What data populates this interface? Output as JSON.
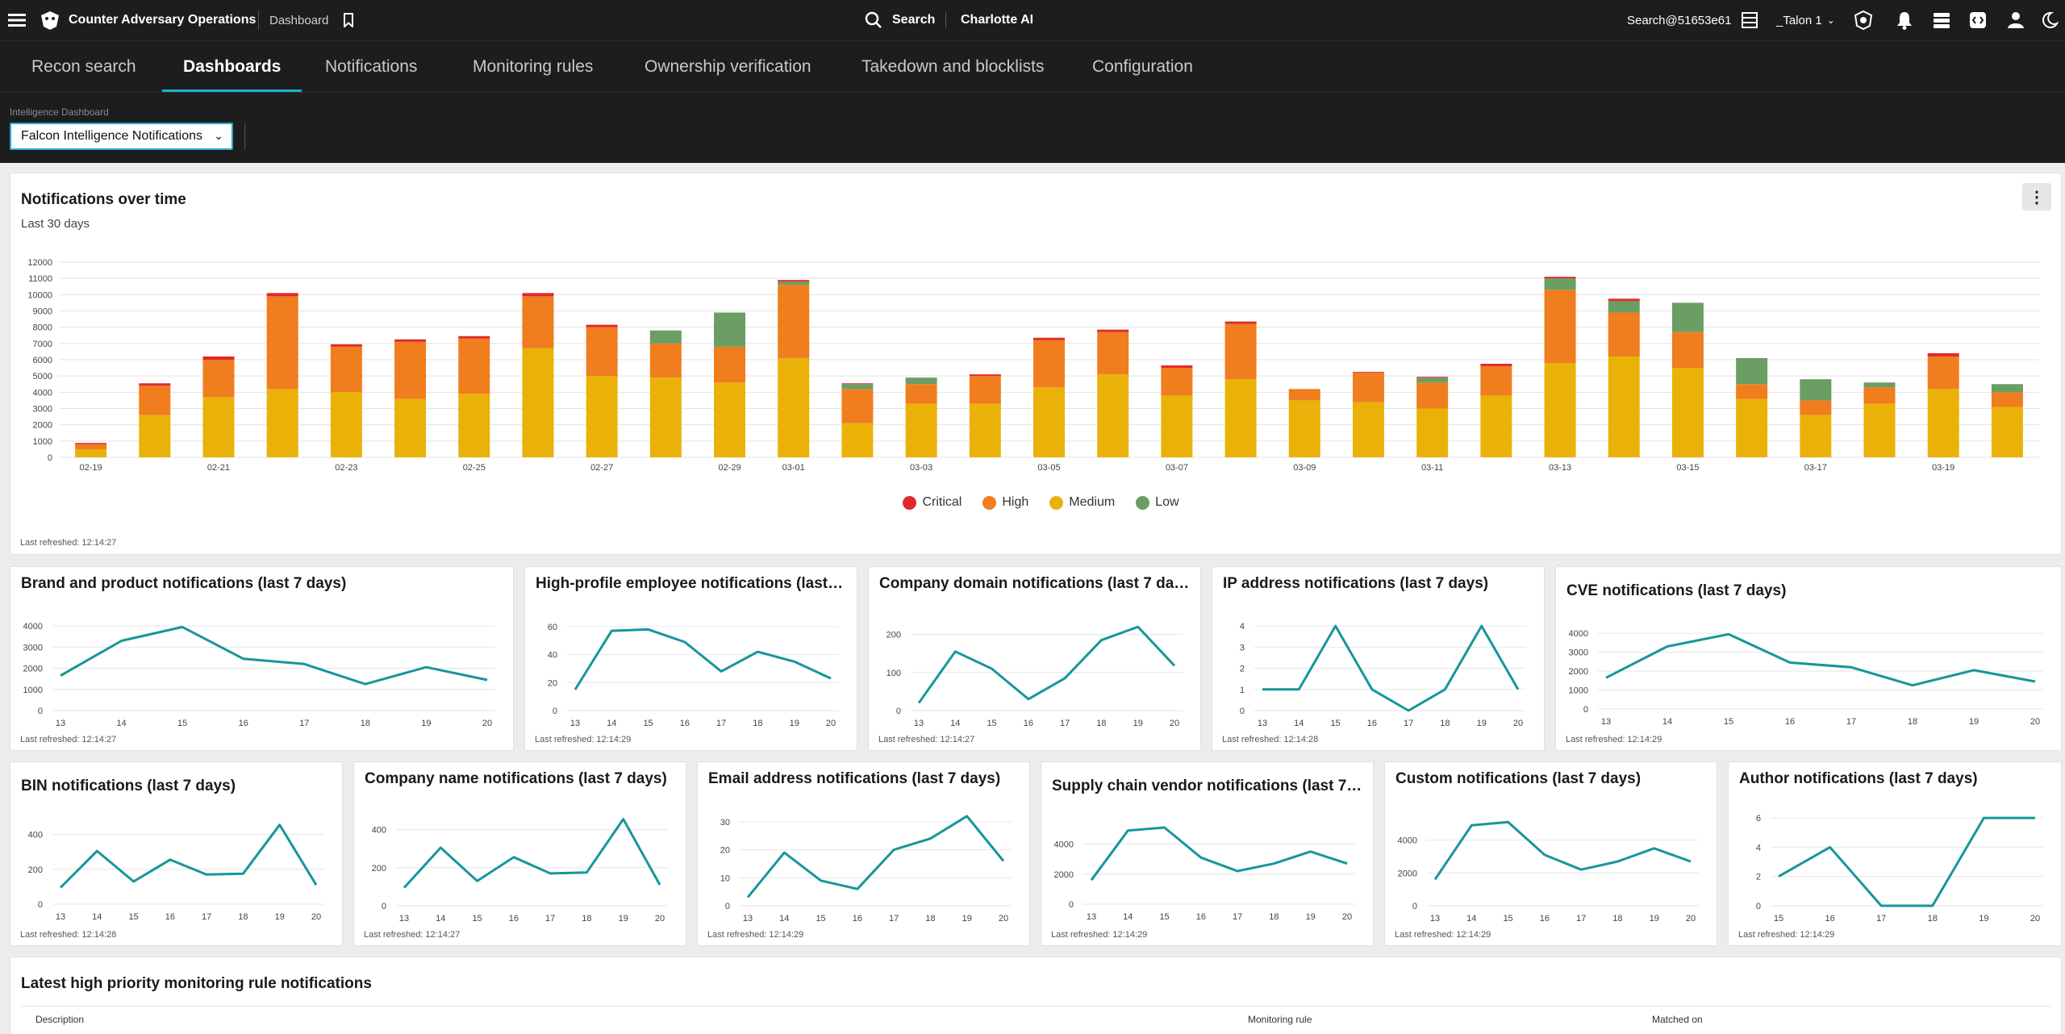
{
  "topbar": {
    "app_name": "Counter Adversary Operations",
    "section": "Dashboard",
    "search_label": "Search",
    "charlotte_label": "Charlotte AI",
    "search_id": "Search@51653e61",
    "tenant": "_Talon 1"
  },
  "tabs": [
    "Recon search",
    "Dashboards",
    "Notifications",
    "Monitoring rules",
    "Ownership verification",
    "Takedown and blocklists",
    "Configuration"
  ],
  "active_tab": "Dashboards",
  "filter": {
    "label": "Intelligence Dashboard",
    "value": "Falcon Intelligence Notifications"
  },
  "colors": {
    "critical": "#e02a2a",
    "high": "#f07d1e",
    "medium": "#eab209",
    "low": "#6a9e62",
    "line": "#17969a",
    "accent": "#1db0d4"
  },
  "main_chart": {
    "title": "Notifications over time",
    "subtitle": "Last 30 days",
    "refreshed": "Last refreshed: 12:14:27",
    "legend": [
      {
        "label": "Critical",
        "color": "#e02a2a"
      },
      {
        "label": "High",
        "color": "#f07d1e"
      },
      {
        "label": "Medium",
        "color": "#eab209"
      },
      {
        "label": "Low",
        "color": "#6a9e62"
      }
    ]
  },
  "small_charts": [
    {
      "title": "Brand and product notifications (last 7 days)",
      "refreshed": "Last refreshed: 12:14:27"
    },
    {
      "title": "High-profile employee notifications (last…",
      "refreshed": "Last refreshed: 12:14:29"
    },
    {
      "title": "Company domain notifications (last 7 da…",
      "refreshed": "Last refreshed: 12:14:27"
    },
    {
      "title": "IP address notifications (last 7 days)",
      "refreshed": "Last refreshed: 12:14:28"
    },
    {
      "title": "CVE notifications (last 7 days)",
      "refreshed": "Last refreshed: 12:14:29"
    },
    {
      "title": "BIN notifications (last 7 days)",
      "refreshed": "Last refreshed: 12:14:28"
    },
    {
      "title": "Company name notifications (last 7 days)",
      "refreshed": "Last refreshed: 12:14:27"
    },
    {
      "title": "Email address notifications (last 7 days)",
      "refreshed": "Last refreshed: 12:14:29"
    },
    {
      "title": "Supply chain vendor notifications (last 7…",
      "refreshed": "Last refreshed: 12:14:29"
    },
    {
      "title": "Custom notifications (last 7 days)",
      "refreshed": "Last refreshed: 12:14:29"
    },
    {
      "title": "Author notifications (last 7 days)",
      "refreshed": "Last refreshed: 12:14:29"
    }
  ],
  "table": {
    "title": "Latest high priority monitoring rule notifications",
    "columns": [
      "Description",
      "Monitoring rule",
      "Matched on"
    ]
  },
  "chart_data": [
    {
      "type": "bar",
      "stacked": true,
      "ylim": [
        0,
        12000
      ],
      "yticks": [
        0,
        1000,
        2000,
        3000,
        4000,
        5000,
        6000,
        7000,
        8000,
        9000,
        10000,
        11000,
        12000
      ],
      "categories": [
        "02-19",
        "02-20",
        "02-21",
        "02-22",
        "02-23",
        "02-24",
        "02-25",
        "02-26",
        "02-27",
        "02-28",
        "02-29",
        "03-01",
        "03-02",
        "03-03",
        "03-04",
        "03-05",
        "03-06",
        "03-07",
        "03-08",
        "03-09",
        "03-10",
        "03-11",
        "03-12",
        "03-13",
        "03-14",
        "03-15",
        "03-16",
        "03-17",
        "03-18",
        "03-19",
        "03-20"
      ],
      "xtick_labels": [
        "02-19",
        "",
        "02-21",
        "",
        "02-23",
        "",
        "02-25",
        "",
        "02-27",
        "",
        "02-29",
        "03-01",
        "",
        "03-03",
        "",
        "03-05",
        "",
        "03-07",
        "",
        "03-09",
        "",
        "03-11",
        "",
        "03-13",
        "",
        "03-15",
        "",
        "03-17",
        "",
        "03-19",
        ""
      ],
      "series": [
        {
          "name": "Medium",
          "values": [
            500,
            2600,
            3700,
            4200,
            4000,
            3600,
            3900,
            6700,
            5000,
            4900,
            4600,
            6100,
            2100,
            3300,
            3300,
            4300,
            5100,
            3800,
            4800,
            3500,
            3400,
            3000,
            3800,
            5800,
            6200,
            5500,
            3600,
            2600,
            3300,
            4200,
            3100
          ]
        },
        {
          "name": "High",
          "values": [
            300,
            1800,
            2300,
            5700,
            2800,
            3500,
            3400,
            3200,
            3000,
            2100,
            2200,
            4500,
            2100,
            1200,
            1700,
            2900,
            2600,
            1700,
            3400,
            700,
            1800,
            1600,
            1800,
            4500,
            2700,
            2200,
            900,
            900,
            1000,
            2000,
            900
          ]
        },
        {
          "name": "Low",
          "values": [
            0,
            0,
            0,
            0,
            0,
            0,
            0,
            0,
            0,
            800,
            2100,
            200,
            300,
            400,
            0,
            0,
            0,
            0,
            0,
            0,
            0,
            300,
            0,
            700,
            700,
            1800,
            1600,
            1300,
            300,
            0,
            500
          ]
        },
        {
          "name": "Critical",
          "values": [
            80,
            150,
            200,
            200,
            150,
            150,
            150,
            200,
            150,
            0,
            0,
            100,
            50,
            0,
            100,
            150,
            150,
            150,
            150,
            0,
            50,
            50,
            150,
            100,
            150,
            0,
            0,
            0,
            0,
            200,
            0
          ]
        }
      ]
    },
    {
      "type": "line",
      "x": [
        "13",
        "14",
        "15",
        "16",
        "17",
        "18",
        "19",
        "20"
      ],
      "values": [
        1650,
        3300,
        3950,
        2450,
        2200,
        1250,
        2050,
        1450
      ],
      "yticks": [
        0,
        1000,
        2000,
        3000,
        4000
      ],
      "ylim": [
        0,
        4500
      ]
    },
    {
      "type": "line",
      "x": [
        "13",
        "14",
        "15",
        "16",
        "17",
        "18",
        "19",
        "20"
      ],
      "values": [
        15,
        57,
        58,
        49,
        28,
        42,
        35,
        23
      ],
      "yticks": [
        0,
        20,
        40,
        60
      ],
      "ylim": [
        0,
        68
      ]
    },
    {
      "type": "line",
      "x": [
        "13",
        "14",
        "15",
        "16",
        "17",
        "18",
        "19",
        "20"
      ],
      "values": [
        20,
        155,
        110,
        30,
        85,
        185,
        220,
        118
      ],
      "yticks": [
        0,
        100,
        200
      ],
      "ylim": [
        0,
        250
      ]
    },
    {
      "type": "line",
      "x": [
        "13",
        "14",
        "15",
        "16",
        "17",
        "18",
        "19",
        "20"
      ],
      "values": [
        1,
        1,
        4,
        1,
        0,
        1,
        4,
        1
      ],
      "yticks": [
        0,
        1,
        2,
        3,
        4
      ],
      "ylim": [
        0,
        4.5
      ]
    },
    {
      "type": "line",
      "x": [
        "13",
        "14",
        "15",
        "16",
        "17",
        "18",
        "19",
        "20"
      ],
      "values": [
        1650,
        3300,
        3950,
        2450,
        2200,
        1250,
        2050,
        1450
      ],
      "yticks": [
        0,
        1000,
        2000,
        3000,
        4000
      ],
      "ylim": [
        0,
        4600
      ]
    },
    {
      "type": "line",
      "x": [
        "13",
        "14",
        "15",
        "16",
        "17",
        "18",
        "19",
        "20"
      ],
      "values": [
        95,
        305,
        130,
        255,
        170,
        175,
        455,
        110
      ],
      "yticks": [
        0,
        200,
        400
      ],
      "ylim": [
        0,
        500
      ]
    },
    {
      "type": "line",
      "x": [
        "13",
        "14",
        "15",
        "16",
        "17",
        "18",
        "19",
        "20"
      ],
      "values": [
        95,
        305,
        130,
        255,
        170,
        175,
        455,
        110
      ],
      "yticks": [
        0,
        200,
        400
      ],
      "ylim": [
        0,
        500
      ]
    },
    {
      "type": "line",
      "x": [
        "13",
        "14",
        "15",
        "16",
        "17",
        "18",
        "19",
        "20"
      ],
      "values": [
        3,
        19,
        9,
        6,
        20,
        24,
        32,
        16
      ],
      "yticks": [
        0,
        10,
        20,
        30
      ],
      "ylim": [
        0,
        34
      ]
    },
    {
      "type": "line",
      "x": [
        "13",
        "14",
        "15",
        "16",
        "17",
        "18",
        "19",
        "20"
      ],
      "values": [
        1600,
        4900,
        5100,
        3100,
        2200,
        2700,
        3500,
        2700
      ],
      "yticks": [
        0,
        2000,
        4000
      ],
      "ylim": [
        0,
        5800
      ]
    },
    {
      "type": "line",
      "x": [
        "13",
        "14",
        "15",
        "16",
        "17",
        "18",
        "19",
        "20"
      ],
      "values": [
        1600,
        4900,
        5100,
        3100,
        2200,
        2700,
        3500,
        2700
      ],
      "yticks": [
        0,
        2000,
        4000
      ],
      "ylim": [
        0,
        5800
      ]
    },
    {
      "type": "line",
      "x": [
        "15",
        "16",
        "17",
        "18",
        "19",
        "20"
      ],
      "values": [
        2,
        4,
        0,
        0,
        6,
        6
      ],
      "yticks": [
        0,
        2,
        4,
        6
      ],
      "ylim": [
        0,
        6.5
      ]
    }
  ]
}
